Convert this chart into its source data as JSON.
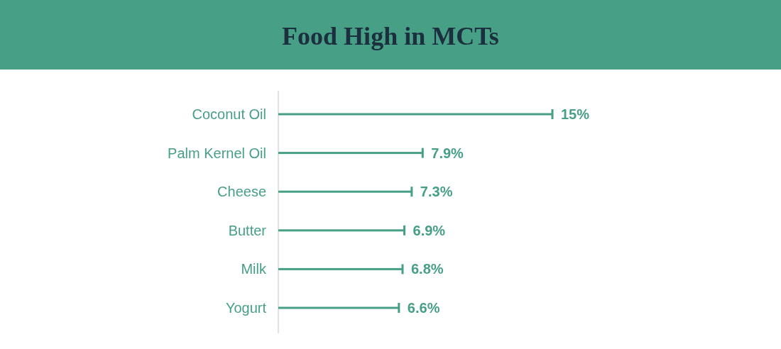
{
  "chart_data": {
    "type": "bar",
    "orientation": "horizontal",
    "title": "Food High in MCTs",
    "categories": [
      "Coconut Oil",
      "Palm Kernel Oil",
      "Cheese",
      "Butter",
      "Milk",
      "Yogurt"
    ],
    "values": [
      15,
      7.9,
      7.3,
      6.9,
      6.8,
      6.6
    ],
    "value_labels": [
      "15%",
      "7.9%",
      "7.3%",
      "6.9%",
      "6.8%",
      "6.6%"
    ],
    "color": "#479f86"
  }
}
